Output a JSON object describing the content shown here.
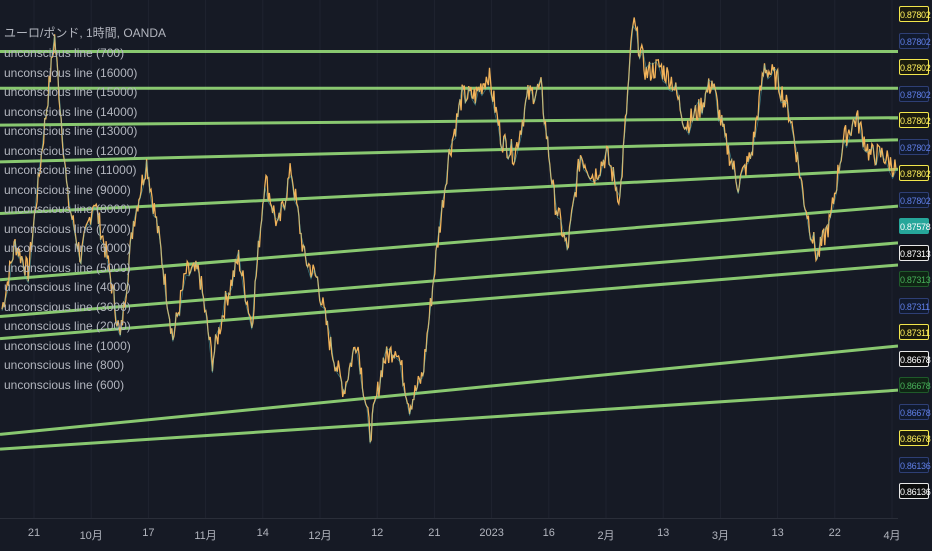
{
  "chart": {
    "series_title": "ユーロ/ポンド, 1時間, OANDA",
    "colors": {
      "background": "#161a25",
      "price_line": "#f2b35a",
      "price_line_alt": "#58c6c9",
      "level_line": "#9ee87e",
      "grid": "#1f2330"
    }
  },
  "legend": [
    "unconscious line (700)",
    "unconscious line (16000)",
    "unconscious line (15000)",
    "unconscious line (14000)",
    "unconscious line (13000)",
    "unconscious line (12000)",
    "unconscious line (11000)",
    "unconscious line (9000)",
    "unconscious line (8000)",
    "unconscious line (7000)",
    "unconscious line (6000)",
    "unconscious line (5000)",
    "unconscious line (4000)",
    "unconscious line (3000)",
    "unconscious line (2000)",
    "unconscious line (1000)",
    "unconscious line (800)",
    "unconscious line (600)"
  ],
  "price_tags": [
    {
      "label": "0.87802",
      "bg": "#1b1b0e",
      "fg": "#fff05c",
      "border": "#f2e64c"
    },
    {
      "label": "0.87802",
      "bg": "#111a2e",
      "fg": "#5f7ee6",
      "border": "#2e3f75"
    },
    {
      "label": "0.87802",
      "bg": "#1b1b0e",
      "fg": "#fff05c",
      "border": "#f2e64c"
    },
    {
      "label": "0.87802",
      "bg": "#111a2e",
      "fg": "#5f7ee6",
      "border": "#2e3f75"
    },
    {
      "label": "0.87802",
      "bg": "#1b1b0e",
      "fg": "#fff05c",
      "border": "#f2e64c"
    },
    {
      "label": "0.87802",
      "bg": "#111a2e",
      "fg": "#5f7ee6",
      "border": "#2e3f75"
    },
    {
      "label": "0.87802",
      "bg": "#1b1b0e",
      "fg": "#fff05c",
      "border": "#f2e64c"
    },
    {
      "label": "0.87802",
      "bg": "#111a2e",
      "fg": "#5f7ee6",
      "border": "#2e3f75"
    },
    {
      "label": "0.87578",
      "bg": "#26a69a",
      "fg": "#ffffff",
      "border": "#26a69a"
    },
    {
      "label": "0.87313",
      "bg": "#0c0c0c",
      "fg": "#ffffff",
      "border": "#e8e8e8"
    },
    {
      "label": "0.87313",
      "bg": "#0f2414",
      "fg": "#48b05a",
      "border": "#1f5a2a"
    },
    {
      "label": "0.87311",
      "bg": "#111a2e",
      "fg": "#5f7ee6",
      "border": "#2e3f75"
    },
    {
      "label": "0.87311",
      "bg": "#1b1b0e",
      "fg": "#fff05c",
      "border": "#f2e64c"
    },
    {
      "label": "0.86678",
      "bg": "#0c0c0c",
      "fg": "#ffffff",
      "border": "#e8e8e8"
    },
    {
      "label": "0.86678",
      "bg": "#0f2414",
      "fg": "#48b05a",
      "border": "#1f5a2a"
    },
    {
      "label": "0.86678",
      "bg": "#111a2e",
      "fg": "#5f7ee6",
      "border": "#2e3f75"
    },
    {
      "label": "0.86678",
      "bg": "#1b1b0e",
      "fg": "#fff05c",
      "border": "#f2e64c"
    },
    {
      "label": "0.86136",
      "bg": "#111a2e",
      "fg": "#5f7ee6",
      "border": "#2e3f75"
    },
    {
      "label": "0.86136",
      "bg": "#0c0c0c",
      "fg": "#ffffff",
      "border": "#e8e8e8"
    }
  ],
  "time_axis": [
    "21",
    "10月",
    "17",
    "11月",
    "14",
    "12月",
    "12",
    "21",
    "2023",
    "16",
    "2月",
    "13",
    "3月",
    "13",
    "22",
    "4月"
  ],
  "chart_data": {
    "type": "line",
    "title": "ユーロ/ポンド, 1時間, OANDA",
    "x_ticks": [
      "21",
      "10月",
      "17",
      "11月",
      "14",
      "12月",
      "12",
      "21",
      "2023",
      "16",
      "2月",
      "13",
      "3月",
      "13",
      "22",
      "4月"
    ],
    "ylim": [
      0.855,
      0.888
    ],
    "grid": false,
    "legend_placement": "top-left",
    "series": [
      {
        "values": [
          0.8685,
          0.873,
          0.871,
          0.879,
          0.887,
          0.876,
          0.872,
          0.876,
          0.872,
          0.8665,
          0.8745,
          0.8785,
          0.873,
          0.8665,
          0.871,
          0.871,
          0.865,
          0.869,
          0.872,
          0.8675,
          0.8775,
          0.874,
          0.878,
          0.872,
          0.8705,
          0.866,
          0.863,
          0.8665,
          0.86,
          0.865,
          0.866,
          0.862,
          0.864,
          0.872,
          0.879,
          0.883,
          0.883,
          0.8845,
          0.88,
          0.879,
          0.883,
          0.8835,
          0.876,
          0.8725,
          0.879,
          0.8775,
          0.879,
          0.876,
          0.888,
          0.8845,
          0.885,
          0.884,
          0.881,
          0.882,
          0.884,
          0.88,
          0.877,
          0.879,
          0.885,
          0.884,
          0.8815,
          0.876,
          0.872,
          0.8745,
          0.88,
          0.8815,
          0.879,
          0.879,
          0.878
        ]
      }
    ],
    "levels": [
      {
        "name": "unconscious line (16000)",
        "start": 0.886,
        "end": 0.886
      },
      {
        "name": "unconscious line (15000)",
        "start": 0.8835,
        "end": 0.8835
      },
      {
        "name": "unconscious line (13000)",
        "start": 0.881,
        "end": 0.8815
      },
      {
        "name": "unconscious line (11000)",
        "start": 0.8785,
        "end": 0.88
      },
      {
        "name": "unconscious line (9000)",
        "start": 0.875,
        "end": 0.878
      },
      {
        "name": "unconscious line (7000)",
        "start": 0.8705,
        "end": 0.8755
      },
      {
        "name": "unconscious line (5000)",
        "start": 0.868,
        "end": 0.873
      },
      {
        "name": "unconscious line (3000)",
        "start": 0.8665,
        "end": 0.8715
      },
      {
        "name": "unconscious line (1000)",
        "start": 0.86,
        "end": 0.866
      },
      {
        "name": "unconscious line (600)",
        "start": 0.859,
        "end": 0.863
      }
    ]
  }
}
